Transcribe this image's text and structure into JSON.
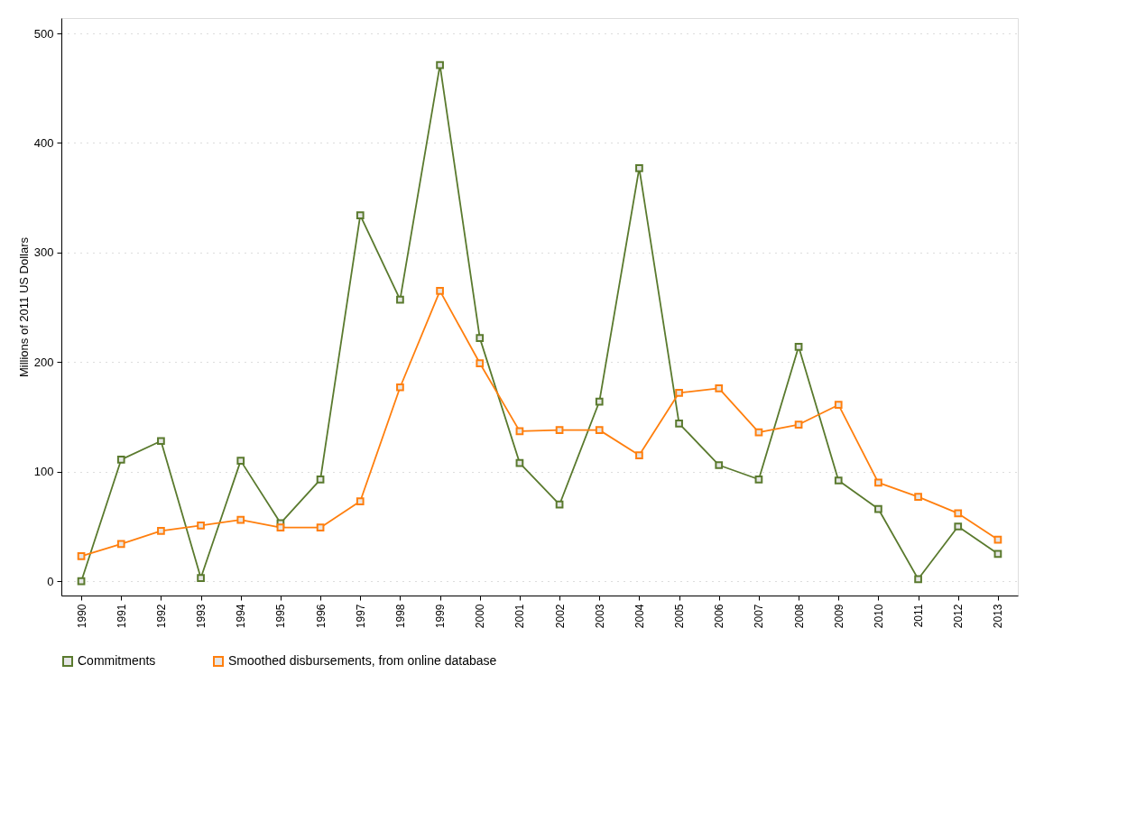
{
  "chart_data": {
    "type": "line",
    "ylabel": "Millions of 2011 US Dollars",
    "categories": [
      "1990",
      "1991",
      "1992",
      "1993",
      "1994",
      "1995",
      "1996",
      "1997",
      "1998",
      "1999",
      "2000",
      "2001",
      "2002",
      "2003",
      "2004",
      "2005",
      "2006",
      "2007",
      "2008",
      "2009",
      "2010",
      "2011",
      "2012",
      "2013"
    ],
    "series": [
      {
        "name": "Commitments",
        "color": "#5a7a2e",
        "values": [
          0,
          111,
          128,
          3,
          110,
          53,
          93,
          334,
          257,
          471,
          222,
          108,
          70,
          164,
          377,
          144,
          106,
          93,
          214,
          92,
          66,
          2,
          50,
          25
        ]
      },
      {
        "name": "Smoothed disbursements, from online database",
        "color": "#ff7f0e",
        "values": [
          23,
          34,
          46,
          51,
          56,
          49,
          49,
          73,
          177,
          265,
          199,
          137,
          138,
          138,
          115,
          172,
          176,
          136,
          143,
          161,
          90,
          77,
          62,
          38
        ]
      }
    ],
    "ylim": [
      -13,
      514
    ],
    "yticks": [
      0,
      100,
      200,
      300,
      400,
      500
    ],
    "grid": "y",
    "legend": "bottom",
    "marker": "square",
    "line_style": "solid"
  }
}
